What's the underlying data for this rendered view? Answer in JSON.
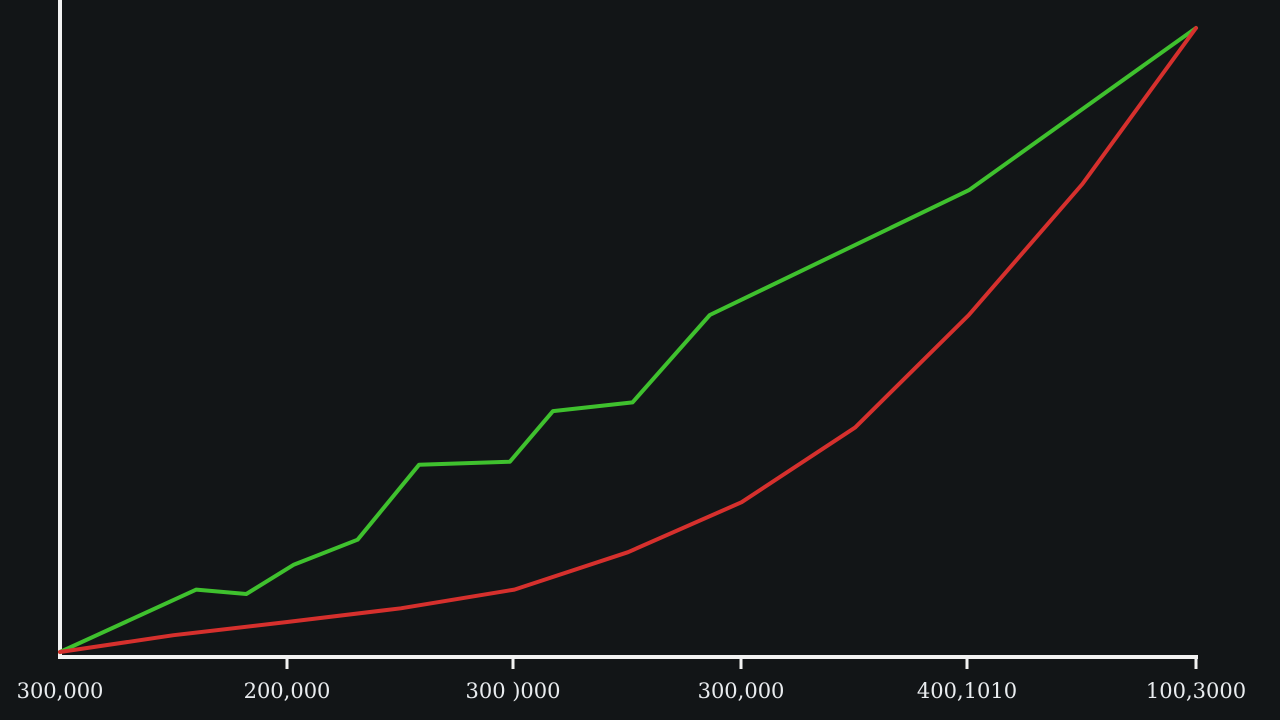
{
  "chart_data": {
    "type": "line",
    "title": "",
    "xlabel": "",
    "ylabel": "",
    "background": "#121517",
    "axis_color": "#f2f2f2",
    "grid": false,
    "legend": "none",
    "x_tick_labels": [
      "300,000",
      "200,000",
      "300 )000",
      "300,000",
      "400,1010",
      "100,3000"
    ],
    "xlim": [
      0,
      5
    ],
    "ylim": [
      0,
      100
    ],
    "series": [
      {
        "color": "#3fc12e",
        "points": [
          [
            0,
            0
          ],
          [
            0.6,
            10
          ],
          [
            0.82,
            9.3
          ],
          [
            1.03,
            14
          ],
          [
            1.31,
            18
          ],
          [
            1.58,
            30
          ],
          [
            1.98,
            30.5
          ],
          [
            2.17,
            38.6
          ],
          [
            2.52,
            40
          ],
          [
            2.86,
            54
          ],
          [
            4.0,
            74
          ],
          [
            5,
            100
          ]
        ]
      },
      {
        "color": "#d6302d",
        "points": [
          [
            0,
            0
          ],
          [
            0.5,
            2.7
          ],
          [
            1.0,
            4.8
          ],
          [
            1.5,
            7
          ],
          [
            2.0,
            10
          ],
          [
            2.5,
            16
          ],
          [
            3.0,
            24
          ],
          [
            3.5,
            36
          ],
          [
            4.0,
            54
          ],
          [
            4.5,
            75
          ],
          [
            5,
            100
          ]
        ]
      }
    ]
  }
}
